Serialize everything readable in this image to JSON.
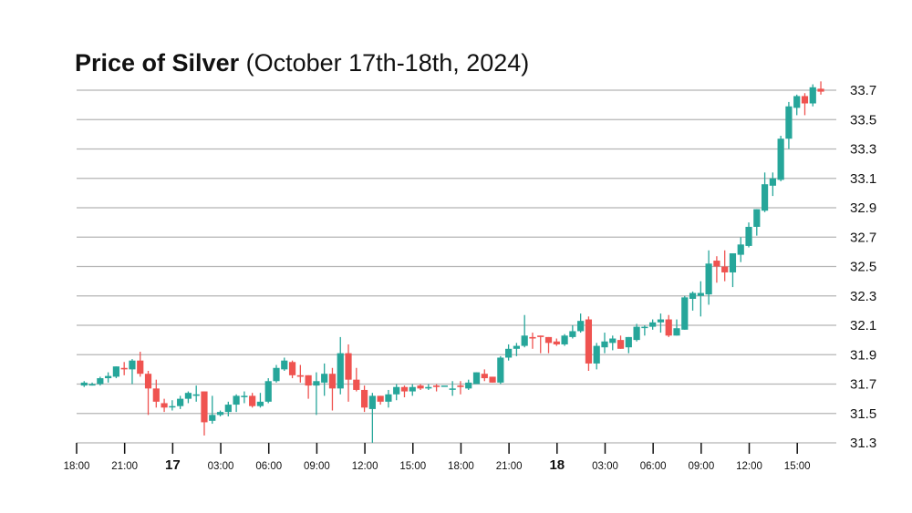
{
  "chart_data": {
    "type": "candlestick",
    "title": "Price of Silver",
    "subtitle": "(October 17th-18th, 2024)",
    "xlabel": "",
    "ylabel": "",
    "ylim": [
      31.3,
      33.7
    ],
    "yticks": [
      "31.3",
      "31.5",
      "31.7",
      "31.9",
      "32.1",
      "32.3",
      "32.5",
      "32.7",
      "32.9",
      "33.1",
      "33.3",
      "33.5",
      "33.7"
    ],
    "xticks": [
      {
        "label": "18:00",
        "hours": 0,
        "bold": false
      },
      {
        "label": "21:00",
        "hours": 3,
        "bold": false
      },
      {
        "label": "17",
        "hours": 6,
        "bold": true
      },
      {
        "label": "03:00",
        "hours": 9,
        "bold": false
      },
      {
        "label": "06:00",
        "hours": 12,
        "bold": false
      },
      {
        "label": "09:00",
        "hours": 15,
        "bold": false
      },
      {
        "label": "12:00",
        "hours": 18,
        "bold": false
      },
      {
        "label": "15:00",
        "hours": 21,
        "bold": false
      },
      {
        "label": "18:00",
        "hours": 24,
        "bold": false
      },
      {
        "label": "21:00",
        "hours": 27,
        "bold": false
      },
      {
        "label": "18",
        "hours": 30,
        "bold": true
      },
      {
        "label": "03:00",
        "hours": 33,
        "bold": false
      },
      {
        "label": "06:00",
        "hours": 36,
        "bold": false
      },
      {
        "label": "09:00",
        "hours": 39,
        "bold": false
      },
      {
        "label": "12:00",
        "hours": 42,
        "bold": false
      },
      {
        "label": "15:00",
        "hours": 45,
        "bold": false
      }
    ],
    "x_range_hours": [
      0,
      47.2
    ],
    "interval_hours": 0.5,
    "up_color": "#26a69a",
    "down_color": "#ef5350",
    "ohlc": [
      [
        31.69,
        31.72,
        31.68,
        31.71
      ],
      [
        31.69,
        31.71,
        31.69,
        31.7
      ],
      [
        31.7,
        31.75,
        31.69,
        31.74
      ],
      [
        31.74,
        31.78,
        31.71,
        31.755
      ],
      [
        31.75,
        31.82,
        31.74,
        31.82
      ],
      [
        31.81,
        31.85,
        31.76,
        31.8
      ],
      [
        31.8,
        31.87,
        31.7,
        31.86
      ],
      [
        31.86,
        31.92,
        31.75,
        31.77
      ],
      [
        31.77,
        31.79,
        31.49,
        31.67
      ],
      [
        31.67,
        31.73,
        31.54,
        31.58
      ],
      [
        31.57,
        31.6,
        31.51,
        31.54
      ],
      [
        31.55,
        31.59,
        31.52,
        31.55
      ],
      [
        31.55,
        31.62,
        31.53,
        31.6
      ],
      [
        31.6,
        31.65,
        31.57,
        31.64
      ],
      [
        31.62,
        31.69,
        31.58,
        31.63
      ],
      [
        31.65,
        31.65,
        31.35,
        31.44
      ],
      [
        31.45,
        31.62,
        31.43,
        31.49
      ],
      [
        31.49,
        31.52,
        31.48,
        31.51
      ],
      [
        31.51,
        31.58,
        31.48,
        31.56
      ],
      [
        31.56,
        31.63,
        31.51,
        31.62
      ],
      [
        31.62,
        31.65,
        31.57,
        31.62
      ],
      [
        31.62,
        31.64,
        31.54,
        31.55
      ],
      [
        31.55,
        31.64,
        31.54,
        31.58
      ],
      [
        31.58,
        31.74,
        31.57,
        31.72
      ],
      [
        31.72,
        31.83,
        31.71,
        31.81
      ],
      [
        31.8,
        31.88,
        31.79,
        31.86
      ],
      [
        31.85,
        31.86,
        31.74,
        31.76
      ],
      [
        31.76,
        31.83,
        31.71,
        31.75
      ],
      [
        31.76,
        31.76,
        31.6,
        31.69
      ],
      [
        31.69,
        31.78,
        31.49,
        31.72
      ],
      [
        31.71,
        31.84,
        31.62,
        31.77
      ],
      [
        31.77,
        31.81,
        31.52,
        31.67
      ],
      [
        31.67,
        32.02,
        31.63,
        31.91
      ],
      [
        31.91,
        31.97,
        31.58,
        31.73
      ],
      [
        31.73,
        31.81,
        31.65,
        31.66
      ],
      [
        31.66,
        31.69,
        31.51,
        31.54
      ],
      [
        31.53,
        31.64,
        31.3,
        31.62
      ],
      [
        31.62,
        31.62,
        31.56,
        31.58
      ],
      [
        31.58,
        31.66,
        31.54,
        31.63
      ],
      [
        31.63,
        31.7,
        31.59,
        31.68
      ],
      [
        31.68,
        31.69,
        31.61,
        31.65
      ],
      [
        31.65,
        31.7,
        31.62,
        31.68
      ],
      [
        31.69,
        31.7,
        31.66,
        31.67
      ],
      [
        31.67,
        31.7,
        31.66,
        31.68
      ],
      [
        31.69,
        31.7,
        31.65,
        31.68
      ],
      [
        31.69,
        31.69,
        31.69,
        31.69
      ],
      [
        31.67,
        31.72,
        31.62,
        31.67
      ],
      [
        31.69,
        31.72,
        31.63,
        31.68
      ],
      [
        31.67,
        31.73,
        31.66,
        31.71
      ],
      [
        31.7,
        31.78,
        31.7,
        31.78
      ],
      [
        31.77,
        31.8,
        31.72,
        31.74
      ],
      [
        31.75,
        31.75,
        31.71,
        31.71
      ],
      [
        31.71,
        31.89,
        31.7,
        31.88
      ],
      [
        31.88,
        31.97,
        31.86,
        31.94
      ],
      [
        31.94,
        31.98,
        31.89,
        31.96
      ],
      [
        31.96,
        32.17,
        31.95,
        32.03
      ],
      [
        32.02,
        32.05,
        31.94,
        32.01
      ],
      [
        32.03,
        32.03,
        31.91,
        32.02
      ],
      [
        32.02,
        32.02,
        31.91,
        31.98
      ],
      [
        31.99,
        32.01,
        31.96,
        31.97
      ],
      [
        31.97,
        32.04,
        31.96,
        32.03
      ],
      [
        32.02,
        32.1,
        32.01,
        32.06
      ],
      [
        32.06,
        32.18,
        32.05,
        32.13
      ],
      [
        32.14,
        32.16,
        31.79,
        31.84
      ],
      [
        31.84,
        31.98,
        31.8,
        31.96
      ],
      [
        31.95,
        32.05,
        31.91,
        31.99
      ],
      [
        31.98,
        32.03,
        31.93,
        32.01
      ],
      [
        32.0,
        32.03,
        31.94,
        31.94
      ],
      [
        31.95,
        32.02,
        31.91,
        32.02
      ],
      [
        32.0,
        32.11,
        31.99,
        32.09
      ],
      [
        32.09,
        32.1,
        32.03,
        32.09
      ],
      [
        32.09,
        32.14,
        32.07,
        32.12
      ],
      [
        32.12,
        32.18,
        32.05,
        32.14
      ],
      [
        32.14,
        32.17,
        32.02,
        32.03
      ],
      [
        32.03,
        32.14,
        32.03,
        32.08
      ],
      [
        32.07,
        32.3,
        32.07,
        32.29
      ],
      [
        32.28,
        32.33,
        32.2,
        32.32
      ],
      [
        32.3,
        32.4,
        32.16,
        32.32
      ],
      [
        32.31,
        32.61,
        32.24,
        32.52
      ],
      [
        32.54,
        32.57,
        32.39,
        32.5
      ],
      [
        32.5,
        32.61,
        32.4,
        32.46
      ],
      [
        32.46,
        32.59,
        32.36,
        32.59
      ],
      [
        32.58,
        32.7,
        32.53,
        32.65
      ],
      [
        32.64,
        32.8,
        32.63,
        32.77
      ],
      [
        32.77,
        32.89,
        32.71,
        32.89
      ],
      [
        32.88,
        33.14,
        32.87,
        33.06
      ],
      [
        33.05,
        33.14,
        32.98,
        33.1
      ],
      [
        33.09,
        33.39,
        33.08,
        33.37
      ],
      [
        33.37,
        33.62,
        33.3,
        33.59
      ],
      [
        33.58,
        33.67,
        33.53,
        33.66
      ],
      [
        33.66,
        33.68,
        33.53,
        33.61
      ],
      [
        33.61,
        33.74,
        33.59,
        33.72
      ],
      [
        33.71,
        33.76,
        33.67,
        33.69
      ]
    ]
  }
}
